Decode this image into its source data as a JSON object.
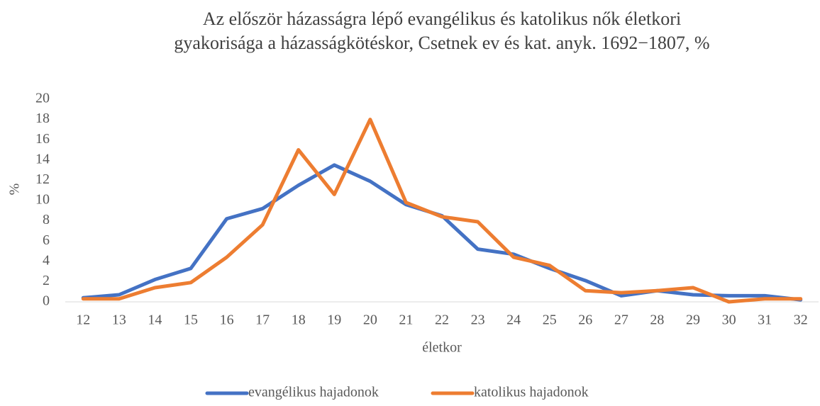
{
  "chart_data": {
    "type": "line",
    "title": [
      "Az először házasságra lépő evangélikus és katolikus nők életkori",
      "gyakorisága a házasságkötéskor, Csetnek ev és kat. anyk. 1692−1807, %"
    ],
    "x_label": "életkor",
    "y_label": "%",
    "categories": [
      12,
      13,
      14,
      15,
      16,
      17,
      18,
      19,
      20,
      21,
      22,
      23,
      24,
      25,
      26,
      27,
      28,
      29,
      30,
      31,
      32
    ],
    "series": [
      {
        "name": "evangélikus hajadonok",
        "color": "#4472c4",
        "values": [
          0.4,
          0.7,
          2.2,
          3.3,
          8.2,
          9.2,
          11.5,
          13.5,
          11.9,
          9.6,
          8.5,
          5.2,
          4.7,
          3.3,
          2.1,
          0.6,
          1.1,
          0.7,
          0.6,
          0.6,
          0.2
        ]
      },
      {
        "name": "katolikus hajadonok",
        "color": "#ed7d31",
        "values": [
          0.3,
          0.3,
          1.4,
          1.9,
          4.4,
          7.6,
          15.0,
          10.6,
          18.0,
          9.8,
          8.4,
          7.9,
          4.4,
          3.6,
          1.1,
          0.9,
          1.1,
          1.4,
          0.0,
          0.3,
          0.3
        ]
      }
    ],
    "ylim": [
      0,
      20
    ],
    "yticks": [
      0,
      2,
      4,
      6,
      8,
      10,
      12,
      14,
      16,
      18,
      20
    ],
    "grid": false,
    "legend": "bottom"
  }
}
